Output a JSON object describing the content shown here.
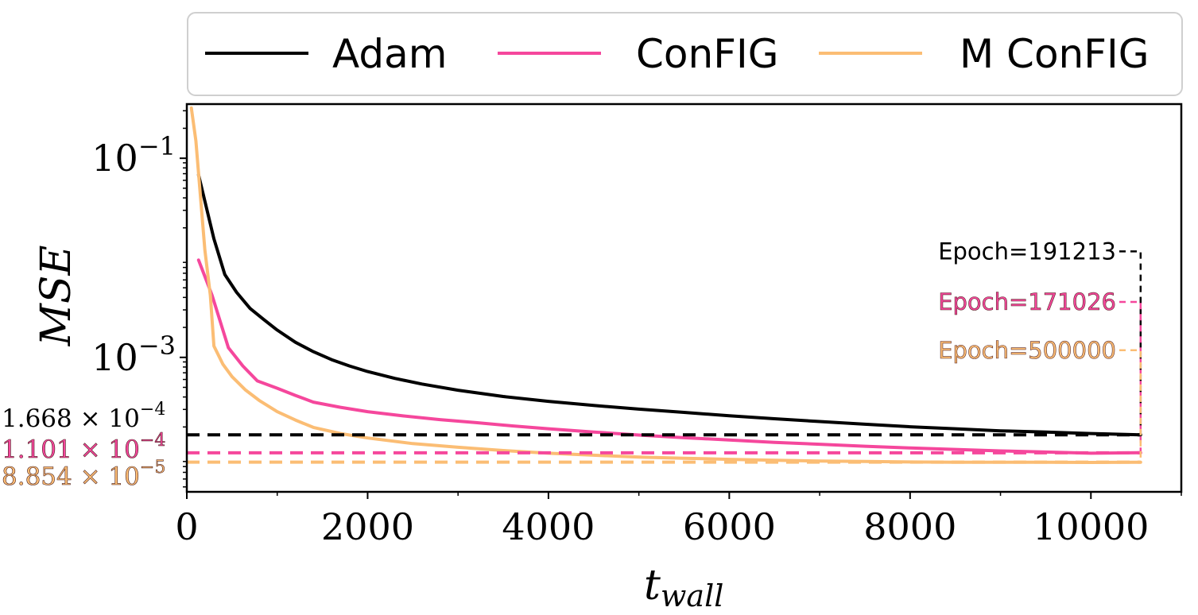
{
  "chart_data": {
    "type": "line",
    "xlabel": "t",
    "xlabel_sub": "wall",
    "ylabel": "MSE",
    "x_scale": "linear",
    "y_scale": "log",
    "xlim": [
      0,
      11000
    ],
    "ylim": [
      4.46e-05,
      0.35
    ],
    "x_ticks": [
      0,
      2000,
      4000,
      6000,
      8000,
      10000
    ],
    "x_tick_labels": [
      "0",
      "2000",
      "4000",
      "6000",
      "8000",
      "10000"
    ],
    "y_ticks": [
      {
        "value": 0.1,
        "base": "10",
        "exp": "−1"
      },
      {
        "value": 0.001,
        "base": "10",
        "exp": "−3"
      }
    ],
    "grid": false,
    "legend_position": "top, outside plot",
    "series": [
      {
        "name": "Adam",
        "color": "#000000",
        "x": [
          130,
          300,
          420,
          550,
          700,
          850,
          1000,
          1200,
          1400,
          1600,
          1800,
          2000,
          2300,
          2600,
          3000,
          3500,
          4000,
          4500,
          5000,
          5500,
          6000,
          6500,
          7000,
          7500,
          8000,
          8500,
          9000,
          9500,
          10000,
          10550
        ],
        "y": [
          0.068,
          0.0155,
          0.0068,
          0.0045,
          0.0031,
          0.0024,
          0.00188,
          0.00142,
          0.00114,
          0.00095,
          0.00082,
          0.00072,
          0.000615,
          0.00054,
          0.000468,
          0.000405,
          0.000362,
          0.000329,
          0.000302,
          0.00028,
          0.000259,
          0.000242,
          0.000227,
          0.000213,
          0.000201,
          0.000192,
          0.000183,
          0.000178,
          0.000172,
          0.0001668
        ]
      },
      {
        "name": "ConFIG",
        "color": "#f5479c",
        "x": [
          130,
          280,
          460,
          620,
          780,
          1000,
          1200,
          1400,
          1700,
          2000,
          2400,
          2800,
          3200,
          3600,
          4000,
          4500,
          5000,
          5500,
          6000,
          6500,
          7000,
          7500,
          8000,
          8500,
          9000,
          9500,
          10000,
          10550
        ],
        "y": [
          0.0095,
          0.0042,
          0.00125,
          0.00082,
          0.00058,
          0.00049,
          0.000415,
          0.000355,
          0.000315,
          0.000285,
          0.000258,
          0.000237,
          0.000221,
          0.000205,
          0.000192,
          0.000178,
          0.000166,
          0.000156,
          0.000148,
          0.00014,
          0.000134,
          0.000128,
          0.000123,
          0.000119,
          0.000115,
          0.000112,
          0.000109,
          0.0001101
        ]
      },
      {
        "name": "M ConFIG",
        "color": "#fbbd74",
        "x": [
          50,
          100,
          150,
          200,
          260,
          300,
          400,
          500,
          650,
          800,
          1000,
          1200,
          1400,
          1700,
          2000,
          2500,
          3000,
          3500,
          4000,
          4500,
          5000,
          5500,
          6000,
          6500,
          7000,
          7500,
          8000,
          8500,
          9000,
          9500,
          10000,
          10550
        ],
        "y": [
          0.32,
          0.15,
          0.042,
          0.012,
          0.0042,
          0.0013,
          0.00085,
          0.00064,
          0.00047,
          0.00037,
          0.000285,
          0.000235,
          0.000198,
          0.000172,
          0.000155,
          0.000136,
          0.000125,
          0.000116,
          0.000109,
          0.000104,
          9.95e-05,
          9.7e-05,
          9.45e-05,
          9.25e-05,
          9.1e-05,
          9e-05,
          8.9e-05,
          8.85e-05,
          8.85e-05,
          8.85e-05,
          8.8e-05,
          8.854e-05
        ]
      }
    ],
    "final_values": [
      {
        "series": "Adam",
        "value": 0.0001668,
        "mantissa": "1.668 × 10",
        "exp": "−4",
        "color": "#000000"
      },
      {
        "series": "ConFIG",
        "value": 0.0001101,
        "mantissa": "1.101 × 10",
        "exp": "−4",
        "color": "#f5479c"
      },
      {
        "series": "M ConFIG",
        "value": 8.854e-05,
        "mantissa": "8.854 × 10",
        "exp": "−5",
        "color": "#fbbd74"
      }
    ],
    "epoch_annotations": [
      {
        "series": "Adam",
        "text": "Epoch=191213",
        "color": "#000000",
        "level": 0.0116
      },
      {
        "series": "ConFIG",
        "text": "Epoch=171026",
        "color": "#f5479c",
        "level": 0.0036
      },
      {
        "series": "M ConFIG",
        "text": "Epoch=500000",
        "color": "#fbbd74",
        "level": 0.00118
      }
    ],
    "end_x": 10550
  }
}
